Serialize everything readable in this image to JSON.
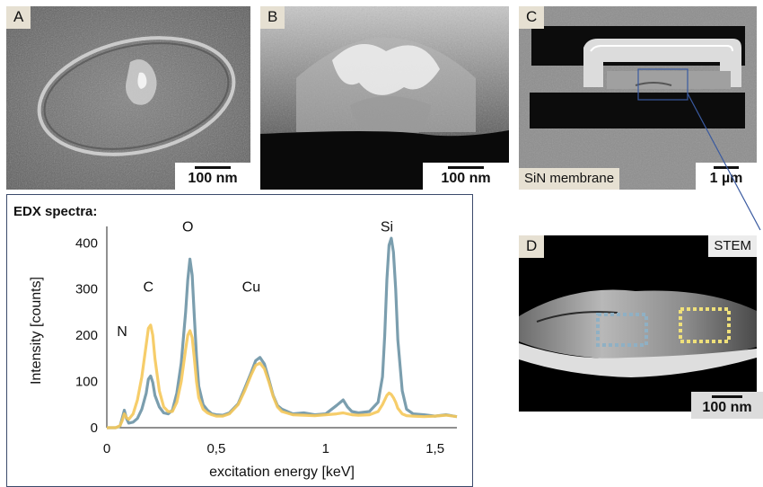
{
  "panels": {
    "a": {
      "letter": "A",
      "scale_label": "100 nm"
    },
    "b": {
      "letter": "B",
      "scale_label": "100 nm"
    },
    "c": {
      "letter": "C",
      "caption": "SiN membrane",
      "scale_label": "1 µm"
    },
    "d": {
      "letter": "D",
      "caption": "STEM",
      "scale_label": "100 nm"
    }
  },
  "colors": {
    "series_blue": "#7b9eae",
    "series_yellow": "#f5c85a"
  },
  "chart_data": {
    "type": "line",
    "title": "EDX spectra:",
    "xlabel": "excitation energy [keV]",
    "ylabel": "Intensity [counts]",
    "xlim": [
      0,
      1.6
    ],
    "ylim": [
      0,
      420
    ],
    "xticks": [
      0,
      0.5,
      1,
      1.5
    ],
    "xtick_labels": [
      "0",
      "0,5",
      "1",
      "1,5"
    ],
    "yticks": [
      0,
      100,
      200,
      300,
      400
    ],
    "ytick_labels": [
      "0",
      "100",
      "200",
      "300",
      "400"
    ],
    "grid": false,
    "annotations": [
      {
        "text": "N",
        "x": 0.07,
        "y": 198
      },
      {
        "text": "C",
        "x": 0.19,
        "y": 295
      },
      {
        "text": "O",
        "x": 0.37,
        "y": 425
      },
      {
        "text": "Cu",
        "x": 0.66,
        "y": 295
      },
      {
        "text": "Si",
        "x": 1.28,
        "y": 425
      }
    ],
    "series": [
      {
        "color": "#7b9eae",
        "x": [
          0.0,
          0.04,
          0.06,
          0.07,
          0.08,
          0.09,
          0.1,
          0.12,
          0.14,
          0.16,
          0.18,
          0.19,
          0.2,
          0.21,
          0.22,
          0.24,
          0.26,
          0.28,
          0.3,
          0.32,
          0.34,
          0.36,
          0.37,
          0.38,
          0.39,
          0.4,
          0.41,
          0.42,
          0.44,
          0.46,
          0.48,
          0.5,
          0.53,
          0.56,
          0.6,
          0.63,
          0.66,
          0.68,
          0.7,
          0.72,
          0.74,
          0.76,
          0.78,
          0.8,
          0.85,
          0.9,
          0.95,
          1.0,
          1.05,
          1.08,
          1.1,
          1.12,
          1.15,
          1.2,
          1.24,
          1.26,
          1.27,
          1.28,
          1.29,
          1.3,
          1.31,
          1.32,
          1.33,
          1.35,
          1.37,
          1.4,
          1.45,
          1.5,
          1.55,
          1.6
        ],
        "values": [
          0,
          0,
          3,
          20,
          38,
          20,
          10,
          12,
          20,
          40,
          75,
          105,
          112,
          98,
          70,
          45,
          32,
          30,
          38,
          75,
          140,
          250,
          320,
          365,
          330,
          240,
          155,
          90,
          50,
          38,
          30,
          28,
          27,
          32,
          52,
          85,
          120,
          145,
          152,
          138,
          105,
          70,
          48,
          40,
          30,
          32,
          28,
          30,
          48,
          60,
          45,
          35,
          32,
          35,
          55,
          110,
          200,
          320,
          395,
          410,
          380,
          300,
          190,
          80,
          40,
          30,
          28,
          25,
          28,
          24
        ]
      },
      {
        "color": "#f5c85a",
        "x": [
          0.0,
          0.04,
          0.06,
          0.07,
          0.08,
          0.09,
          0.1,
          0.12,
          0.14,
          0.16,
          0.18,
          0.19,
          0.2,
          0.21,
          0.22,
          0.24,
          0.26,
          0.28,
          0.3,
          0.32,
          0.34,
          0.36,
          0.37,
          0.38,
          0.39,
          0.4,
          0.41,
          0.42,
          0.44,
          0.46,
          0.48,
          0.5,
          0.53,
          0.56,
          0.6,
          0.63,
          0.66,
          0.68,
          0.7,
          0.72,
          0.74,
          0.76,
          0.78,
          0.8,
          0.85,
          0.9,
          0.95,
          1.0,
          1.05,
          1.08,
          1.1,
          1.12,
          1.15,
          1.2,
          1.24,
          1.26,
          1.27,
          1.28,
          1.29,
          1.3,
          1.31,
          1.32,
          1.33,
          1.35,
          1.37,
          1.4,
          1.45,
          1.5,
          1.55,
          1.6
        ],
        "values": [
          0,
          0,
          4,
          15,
          30,
          22,
          18,
          30,
          60,
          110,
          180,
          215,
          222,
          200,
          150,
          80,
          45,
          35,
          35,
          55,
          100,
          170,
          200,
          210,
          195,
          150,
          100,
          65,
          40,
          32,
          28,
          25,
          25,
          30,
          50,
          80,
          115,
          135,
          140,
          128,
          100,
          68,
          45,
          35,
          28,
          27,
          26,
          28,
          30,
          32,
          30,
          28,
          27,
          28,
          35,
          50,
          60,
          70,
          75,
          72,
          65,
          55,
          42,
          30,
          26,
          25,
          24,
          25,
          27,
          24
        ]
      }
    ]
  }
}
